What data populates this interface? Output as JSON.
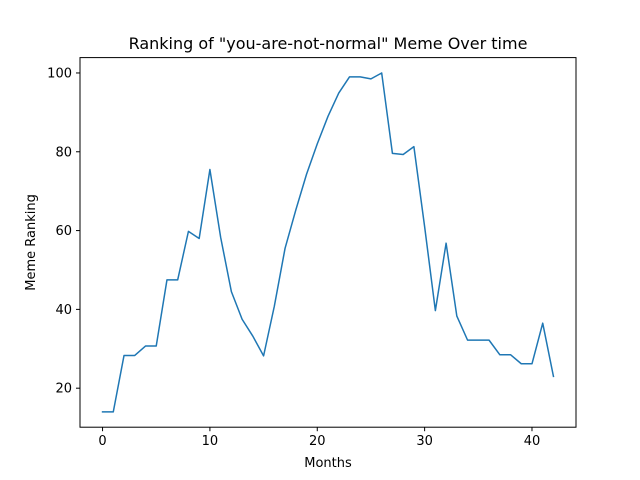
{
  "chart_data": {
    "type": "line",
    "title": "Ranking of \"you-are-not-normal\" Meme Over time",
    "xlabel": "Months",
    "ylabel": "Meme Ranking",
    "xlim": [
      -2.1,
      44.1
    ],
    "ylim": [
      10.1,
      103.9
    ],
    "xticks": [
      0,
      10,
      20,
      30,
      40
    ],
    "yticks": [
      20,
      40,
      60,
      80,
      100
    ],
    "grid": false,
    "series": [
      {
        "color": "#1f77b4",
        "x": [
          0,
          1,
          2,
          3,
          4,
          5,
          6,
          7,
          8,
          9,
          10,
          11,
          12,
          13,
          14,
          15,
          16,
          17,
          18,
          19,
          20,
          21,
          22,
          23,
          24,
          25,
          26,
          27,
          28,
          29,
          30,
          31,
          32,
          33,
          34,
          35,
          36,
          37,
          38,
          39,
          40,
          41,
          42
        ],
        "values": [
          14.0,
          14.0,
          28.3,
          28.3,
          30.7,
          30.7,
          47.5,
          47.5,
          59.8,
          58.0,
          75.5,
          58.3,
          44.5,
          37.5,
          33.2,
          28.2,
          40.8,
          55.5,
          65.2,
          74.3,
          82.0,
          89.0,
          94.9,
          99.0,
          99.0,
          98.5,
          100.0,
          79.6,
          79.3,
          81.3,
          61.0,
          39.7,
          56.8,
          38.3,
          32.2,
          32.2,
          32.2,
          28.5,
          28.5,
          26.2,
          26.2,
          36.5,
          23.0
        ]
      }
    ]
  }
}
